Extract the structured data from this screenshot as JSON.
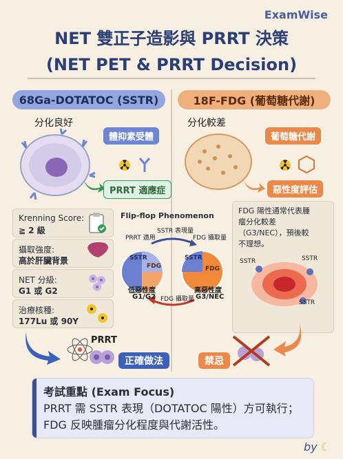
{
  "brand": "ExamWise",
  "title": {
    "line1": "NET 雙正子造影與 PRRT 決策",
    "line2": "(NET PET & PRRT Decision)"
  },
  "left": {
    "header": "68Ga-DOTATOC (SSTR)",
    "diff_label": "分化良好",
    "receptor_tag": "體抑素受體",
    "prrt_indication": "PRRT 適應症",
    "cards": [
      {
        "k": "Krenning Score:",
        "v": "≧ 2 級"
      },
      {
        "k": "攝取強度:",
        "v": "高於肝臟背景"
      },
      {
        "k": "NET 分級:",
        "v": "G1 或 G2"
      },
      {
        "k": "治療核種:",
        "v": "177Lu 或 90Y"
      }
    ],
    "prrt_label": "PRRT",
    "correct": "正確做法"
  },
  "center": {
    "title": "Flip-flop Phenomenon",
    "sstr_expr": "SSTR 表現量",
    "fdg_up": "FDG 攝取量",
    "prrt_fit": "PRRT 適用",
    "fdg_uptake": "FDG 攝取量",
    "left_circle": {
      "sstr": "SSTR",
      "fdg": "FDG"
    },
    "right_circle": {
      "sstr": "SSTR",
      "fdg": "FDG"
    },
    "low_grade": "低惡性度",
    "low_grade2": "G1/G2",
    "high_grade": "高惡性度",
    "high_grade2": "G3/NEC"
  },
  "right": {
    "header": "18F-FDG (葡萄糖代謝)",
    "diff_label": "分化較差",
    "glucose_tag": "葡萄糖代謝",
    "malignancy_tag": "惡性度評估",
    "box_text_1": "FDG 陽性通常代表腫",
    "box_text_2": "瘤分化較差",
    "box_text_3": "（G3/NEC），預後較",
    "box_text_4": "不理想。",
    "sstr_a": "SSTR",
    "sstr_b": "SSTR",
    "sstr_c": "SSTR",
    "contra": "禁忌"
  },
  "exam": {
    "heading": "考試重點 (Exam Focus)",
    "line1": "PRRT 需 SSTR 表現（DOTATOC 陽性）方可執行；",
    "line2": "FDG 反映腫瘤分化程度與代謝活性。"
  },
  "signature": "by",
  "colors": {
    "navy": "#2a3e78",
    "blue": "#6c86d3",
    "orange": "#e9894a",
    "cream": "#f6efe2",
    "green": "#2f9a57",
    "red": "#c0392b"
  }
}
